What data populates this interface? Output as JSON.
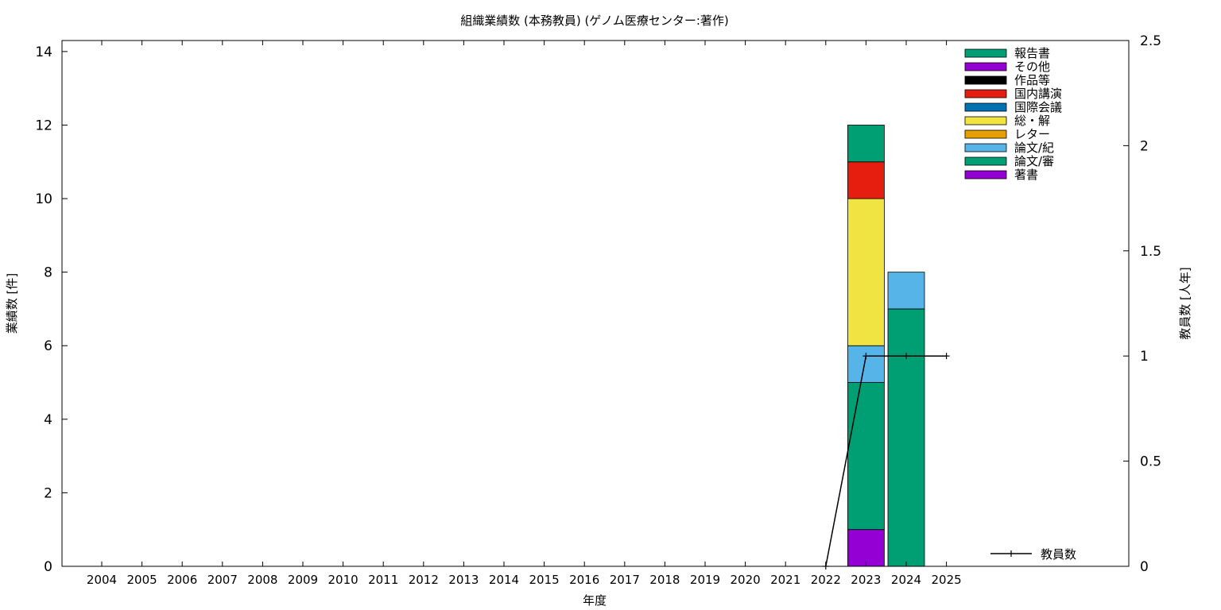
{
  "chart_data": {
    "type": "bar",
    "stacked": true,
    "title": "組織業績数 (本務教員) (ゲノム医療センター:著作)",
    "xlabel": "年度",
    "ylabel": "業績数 [件]",
    "y2label": "教員数 [人年]",
    "categories": [
      "2004",
      "2005",
      "2006",
      "2007",
      "2008",
      "2009",
      "2010",
      "2011",
      "2012",
      "2013",
      "2014",
      "2015",
      "2016",
      "2017",
      "2018",
      "2019",
      "2020",
      "2021",
      "2022",
      "2023",
      "2024",
      "2025"
    ],
    "ylim": [
      0,
      14.3
    ],
    "yticks": [
      0,
      2,
      4,
      6,
      8,
      10,
      12,
      14
    ],
    "y2lim": [
      0,
      2.5
    ],
    "y2ticks": [
      "0",
      "0.5",
      "1",
      "1.5",
      "2",
      "2.5"
    ],
    "grid": false,
    "legend_position": "top-right",
    "series": [
      {
        "name": "著書",
        "color": "#9400d3",
        "values": [
          0,
          0,
          0,
          0,
          0,
          0,
          0,
          0,
          0,
          0,
          0,
          0,
          0,
          0,
          0,
          0,
          0,
          0,
          0,
          1,
          0,
          0
        ]
      },
      {
        "name": "論文/審",
        "color": "#009e73",
        "values": [
          0,
          0,
          0,
          0,
          0,
          0,
          0,
          0,
          0,
          0,
          0,
          0,
          0,
          0,
          0,
          0,
          0,
          0,
          0,
          4,
          7,
          0
        ]
      },
      {
        "name": "論文/紀",
        "color": "#56b4e9",
        "values": [
          0,
          0,
          0,
          0,
          0,
          0,
          0,
          0,
          0,
          0,
          0,
          0,
          0,
          0,
          0,
          0,
          0,
          0,
          0,
          1,
          1,
          0
        ]
      },
      {
        "name": "レター",
        "color": "#e69f00",
        "values": [
          0,
          0,
          0,
          0,
          0,
          0,
          0,
          0,
          0,
          0,
          0,
          0,
          0,
          0,
          0,
          0,
          0,
          0,
          0,
          0,
          0,
          0
        ]
      },
      {
        "name": "総・解",
        "color": "#f0e442",
        "values": [
          0,
          0,
          0,
          0,
          0,
          0,
          0,
          0,
          0,
          0,
          0,
          0,
          0,
          0,
          0,
          0,
          0,
          0,
          0,
          4,
          0,
          0
        ]
      },
      {
        "name": "国際会議",
        "color": "#0072b2",
        "values": [
          0,
          0,
          0,
          0,
          0,
          0,
          0,
          0,
          0,
          0,
          0,
          0,
          0,
          0,
          0,
          0,
          0,
          0,
          0,
          0,
          0,
          0
        ]
      },
      {
        "name": "国内講演",
        "color": "#e51e10",
        "values": [
          0,
          0,
          0,
          0,
          0,
          0,
          0,
          0,
          0,
          0,
          0,
          0,
          0,
          0,
          0,
          0,
          0,
          0,
          0,
          1,
          0,
          0
        ]
      },
      {
        "name": "作品等",
        "color": "#000000",
        "values": [
          0,
          0,
          0,
          0,
          0,
          0,
          0,
          0,
          0,
          0,
          0,
          0,
          0,
          0,
          0,
          0,
          0,
          0,
          0,
          0,
          0,
          0
        ]
      },
      {
        "name": "その他",
        "color": "#9400d3",
        "values": [
          0,
          0,
          0,
          0,
          0,
          0,
          0,
          0,
          0,
          0,
          0,
          0,
          0,
          0,
          0,
          0,
          0,
          0,
          0,
          0,
          0,
          0
        ]
      },
      {
        "name": "報告書",
        "color": "#009e73",
        "values": [
          0,
          0,
          0,
          0,
          0,
          0,
          0,
          0,
          0,
          0,
          0,
          0,
          0,
          0,
          0,
          0,
          0,
          0,
          0,
          1,
          0,
          0
        ]
      }
    ],
    "line_series": {
      "name": "教員数",
      "color": "#000000",
      "axis": "y2",
      "x": [
        "2022",
        "2023",
        "2024",
        "2025"
      ],
      "values": [
        0,
        1,
        1,
        1
      ]
    }
  }
}
